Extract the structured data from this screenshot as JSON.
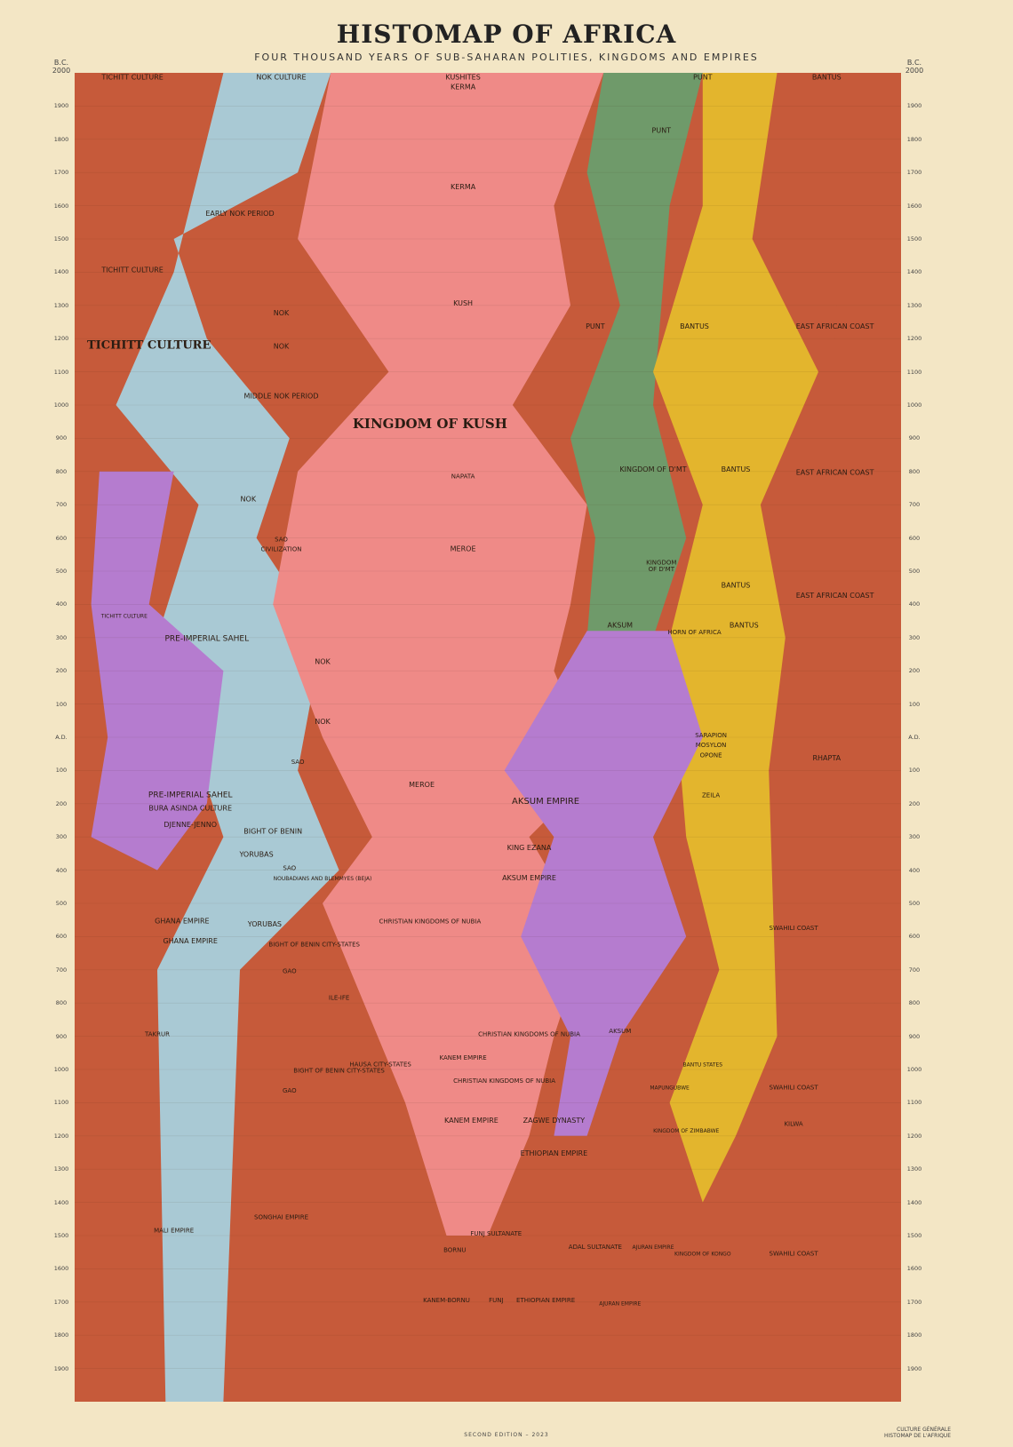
{
  "chart_data": {
    "type": "area",
    "title": "HISTOMAP OF AFRICA",
    "subtitle": "FOUR THOUSAND YEARS OF SUB-SAHARAN POLITIES, KINGDOMS AND EMPIRES",
    "era_label_top": "B.C.",
    "axis_start_label": "2000",
    "era_label_ad": "A.D.",
    "y_ticks_bc": [
      1900,
      1800,
      1700,
      1600,
      1500,
      1400,
      1300,
      1200,
      1100,
      1000,
      900,
      800,
      700,
      600,
      500,
      400,
      300,
      200,
      100
    ],
    "y_ticks_ad": [
      100,
      200,
      300,
      400,
      500,
      600,
      700,
      800,
      900,
      1000,
      1100,
      1200,
      1300,
      1400,
      1500,
      1600,
      1700,
      1800,
      1900
    ],
    "y_range": [
      -2000,
      2000
    ],
    "series": [
      {
        "name": "TICHITT CULTURE",
        "color": "#c65a3a"
      },
      {
        "name": "NOK CULTURE",
        "color": "#a9c9d4"
      },
      {
        "name": "KINGDOM OF KUSH",
        "color": "#ef8a87"
      },
      {
        "name": "PUNT",
        "color": "#6f9a6a"
      },
      {
        "name": "BANTUS",
        "color": "#e3b52d"
      },
      {
        "name": "EAST AFRICAN COAST",
        "color": "#c65a3a"
      },
      {
        "name": "AKSUM EMPIRE",
        "color": "#b57ccf"
      },
      {
        "name": "PRE-IMPERIAL SAHEL",
        "color": "#b57ccf"
      }
    ],
    "labels": [
      {
        "text": "TICHITT CULTURE",
        "year": -1980,
        "x": 0.07,
        "size": 8
      },
      {
        "text": "NOK CULTURE",
        "year": -1980,
        "x": 0.25,
        "size": 8
      },
      {
        "text": "KUSHITES",
        "year": -1980,
        "x": 0.47,
        "size": 8
      },
      {
        "text": "PUNT",
        "year": -1980,
        "x": 0.76,
        "size": 8
      },
      {
        "text": "BANTUS",
        "year": -1980,
        "x": 0.91,
        "size": 8
      },
      {
        "text": "KERMA",
        "year": -1950,
        "x": 0.47,
        "size": 8
      },
      {
        "text": "KERMA",
        "year": -1650,
        "x": 0.47,
        "size": 8
      },
      {
        "text": "PUNT",
        "year": -1820,
        "x": 0.71,
        "size": 8
      },
      {
        "text": "EARLY NOK PERIOD",
        "year": -1570,
        "x": 0.2,
        "size": 8
      },
      {
        "text": "TICHITT CULTURE",
        "year": -1400,
        "x": 0.07,
        "size": 8
      },
      {
        "text": "KUSH",
        "year": -1300,
        "x": 0.47,
        "size": 8
      },
      {
        "text": "NOK",
        "year": -1270,
        "x": 0.25,
        "size": 8
      },
      {
        "text": "PUNT",
        "year": -1230,
        "x": 0.63,
        "size": 8
      },
      {
        "text": "BANTUS",
        "year": -1230,
        "x": 0.75,
        "size": 8
      },
      {
        "text": "EAST AFRICAN COAST",
        "year": -1230,
        "x": 0.92,
        "size": 8
      },
      {
        "text": "TICHITT CULTURE",
        "year": -1170,
        "x": 0.09,
        "size": 13
      },
      {
        "text": "NOK",
        "year": -1170,
        "x": 0.25,
        "size": 8
      },
      {
        "text": "MIDDLE NOK PERIOD",
        "year": -1020,
        "x": 0.25,
        "size": 8
      },
      {
        "text": "KINGDOM OF KUSH",
        "year": -930,
        "x": 0.43,
        "size": 15
      },
      {
        "text": "KINGDOM OF D'MT",
        "year": -800,
        "x": 0.7,
        "size": 8
      },
      {
        "text": "BANTUS",
        "year": -800,
        "x": 0.8,
        "size": 8
      },
      {
        "text": "EAST AFRICAN COAST",
        "year": -790,
        "x": 0.92,
        "size": 8
      },
      {
        "text": "NAPATA",
        "year": -780,
        "x": 0.47,
        "size": 7
      },
      {
        "text": "NOK",
        "year": -710,
        "x": 0.21,
        "size": 8
      },
      {
        "text": "SAO",
        "year": -590,
        "x": 0.25,
        "size": 7
      },
      {
        "text": "CIVILIZATION",
        "year": -560,
        "x": 0.25,
        "size": 7
      },
      {
        "text": "MEROE",
        "year": -560,
        "x": 0.47,
        "size": 8
      },
      {
        "text": "KINGDOM",
        "year": -520,
        "x": 0.71,
        "size": 7
      },
      {
        "text": "OF D'MT",
        "year": -500,
        "x": 0.71,
        "size": 7
      },
      {
        "text": "BANTUS",
        "year": -450,
        "x": 0.8,
        "size": 8
      },
      {
        "text": "EAST AFRICAN COAST",
        "year": -420,
        "x": 0.92,
        "size": 8
      },
      {
        "text": "AKSUM",
        "year": -330,
        "x": 0.66,
        "size": 8
      },
      {
        "text": "BANTUS",
        "year": -330,
        "x": 0.81,
        "size": 8
      },
      {
        "text": "HORN OF AFRICA",
        "year": -310,
        "x": 0.75,
        "size": 7
      },
      {
        "text": "PRE-IMPERIAL SAHEL",
        "year": -290,
        "x": 0.16,
        "size": 9
      },
      {
        "text": "TICHITT CULTURE",
        "year": -360,
        "x": 0.06,
        "size": 6
      },
      {
        "text": "NOK",
        "year": -220,
        "x": 0.3,
        "size": 8
      },
      {
        "text": "NOK",
        "year": -40,
        "x": 0.3,
        "size": 8
      },
      {
        "text": "SARAPION",
        "year": 0,
        "x": 0.77,
        "size": 7
      },
      {
        "text": "MOSYLON",
        "year": 30,
        "x": 0.77,
        "size": 7
      },
      {
        "text": "OPONE",
        "year": 60,
        "x": 0.77,
        "size": 7
      },
      {
        "text": "RHAPTA",
        "year": 70,
        "x": 0.91,
        "size": 8
      },
      {
        "text": "SAO",
        "year": 80,
        "x": 0.27,
        "size": 7
      },
      {
        "text": "MEROE",
        "year": 150,
        "x": 0.42,
        "size": 8
      },
      {
        "text": "AKSUM EMPIRE",
        "year": 200,
        "x": 0.57,
        "size": 10
      },
      {
        "text": "PRE-IMPERIAL SAHEL",
        "year": 180,
        "x": 0.14,
        "size": 9
      },
      {
        "text": "BURA ASINDA CULTURE",
        "year": 220,
        "x": 0.14,
        "size": 8
      },
      {
        "text": "ZEILA",
        "year": 180,
        "x": 0.77,
        "size": 7
      },
      {
        "text": "DJENNE-JENNO",
        "year": 270,
        "x": 0.14,
        "size": 8
      },
      {
        "text": "BIGHT OF BENIN",
        "year": 290,
        "x": 0.24,
        "size": 8
      },
      {
        "text": "KING EZANA",
        "year": 340,
        "x": 0.55,
        "size": 8
      },
      {
        "text": "YORUBAS",
        "year": 360,
        "x": 0.22,
        "size": 8
      },
      {
        "text": "SAO",
        "year": 400,
        "x": 0.26,
        "size": 7
      },
      {
        "text": "AKSUM EMPIRE",
        "year": 430,
        "x": 0.55,
        "size": 8
      },
      {
        "text": "NOUBADIANS AND BLEMMYES (BEJA)",
        "year": 430,
        "x": 0.3,
        "size": 6
      },
      {
        "text": "GHANA EMPIRE",
        "year": 560,
        "x": 0.13,
        "size": 8
      },
      {
        "text": "YORUBAS",
        "year": 570,
        "x": 0.23,
        "size": 8
      },
      {
        "text": "CHRISTIAN KINGDOMS OF NUBIA",
        "year": 560,
        "x": 0.43,
        "size": 7
      },
      {
        "text": "SWAHILI COAST",
        "year": 580,
        "x": 0.87,
        "size": 7
      },
      {
        "text": "GHANA EMPIRE",
        "year": 620,
        "x": 0.14,
        "size": 8
      },
      {
        "text": "BIGHT OF BENIN CITY-STATES",
        "year": 630,
        "x": 0.29,
        "size": 7
      },
      {
        "text": "GAO",
        "year": 710,
        "x": 0.26,
        "size": 7
      },
      {
        "text": "ILE-IFE",
        "year": 790,
        "x": 0.32,
        "size": 7
      },
      {
        "text": "AKSUM",
        "year": 890,
        "x": 0.66,
        "size": 7
      },
      {
        "text": "CHRISTIAN KINGDOMS OF NUBIA",
        "year": 900,
        "x": 0.55,
        "size": 7
      },
      {
        "text": "TAKRUR",
        "year": 900,
        "x": 0.1,
        "size": 7
      },
      {
        "text": "KANEM EMPIRE",
        "year": 970,
        "x": 0.47,
        "size": 7
      },
      {
        "text": "HAUSA CITY-STATES",
        "year": 990,
        "x": 0.37,
        "size": 7
      },
      {
        "text": "BIGHT OF BENIN CITY-STATES",
        "year": 1010,
        "x": 0.32,
        "size": 7
      },
      {
        "text": "CHRISTIAN KINGDOMS OF NUBIA",
        "year": 1040,
        "x": 0.52,
        "size": 7
      },
      {
        "text": "BANTU STATES",
        "year": 990,
        "x": 0.76,
        "size": 6
      },
      {
        "text": "MAPUNGUBWE",
        "year": 1060,
        "x": 0.72,
        "size": 6
      },
      {
        "text": "SWAHILI COAST",
        "year": 1060,
        "x": 0.87,
        "size": 7
      },
      {
        "text": "GAO",
        "year": 1070,
        "x": 0.26,
        "size": 7
      },
      {
        "text": "KANEM EMPIRE",
        "year": 1160,
        "x": 0.48,
        "size": 8
      },
      {
        "text": "ZAGWE DYNASTY",
        "year": 1160,
        "x": 0.58,
        "size": 8
      },
      {
        "text": "KINGDOM OF ZIMBABWE",
        "year": 1190,
        "x": 0.74,
        "size": 6
      },
      {
        "text": "KILWA",
        "year": 1170,
        "x": 0.87,
        "size": 7
      },
      {
        "text": "ETHIOPIAN EMPIRE",
        "year": 1260,
        "x": 0.58,
        "size": 8
      },
      {
        "text": "MALI EMPIRE",
        "year": 1490,
        "x": 0.12,
        "size": 7
      },
      {
        "text": "SONGHAI EMPIRE",
        "year": 1450,
        "x": 0.25,
        "size": 7
      },
      {
        "text": "FUNJ SULTANATE",
        "year": 1500,
        "x": 0.51,
        "size": 7
      },
      {
        "text": "ADAL SULTANATE",
        "year": 1540,
        "x": 0.63,
        "size": 7
      },
      {
        "text": "AJURAN EMPIRE",
        "year": 1540,
        "x": 0.7,
        "size": 6
      },
      {
        "text": "SWAHILI COAST",
        "year": 1560,
        "x": 0.87,
        "size": 7
      },
      {
        "text": "KINGDOM OF KONGO",
        "year": 1560,
        "x": 0.76,
        "size": 6
      },
      {
        "text": "BORNU",
        "year": 1550,
        "x": 0.46,
        "size": 7
      },
      {
        "text": "KANEM-BORNU",
        "year": 1700,
        "x": 0.45,
        "size": 7
      },
      {
        "text": "FUNJ",
        "year": 1700,
        "x": 0.51,
        "size": 7
      },
      {
        "text": "ETHIOPIAN EMPIRE",
        "year": 1700,
        "x": 0.57,
        "size": 7
      },
      {
        "text": "AJURAN EMPIRE",
        "year": 1710,
        "x": 0.66,
        "size": 6
      }
    ]
  },
  "footer": {
    "edition": "SECOND EDITION – 2023",
    "publisher": "CULTURE GÉNÉRALE",
    "publisher_sub": "HISTOMAP DE L'AFRIQUE"
  }
}
